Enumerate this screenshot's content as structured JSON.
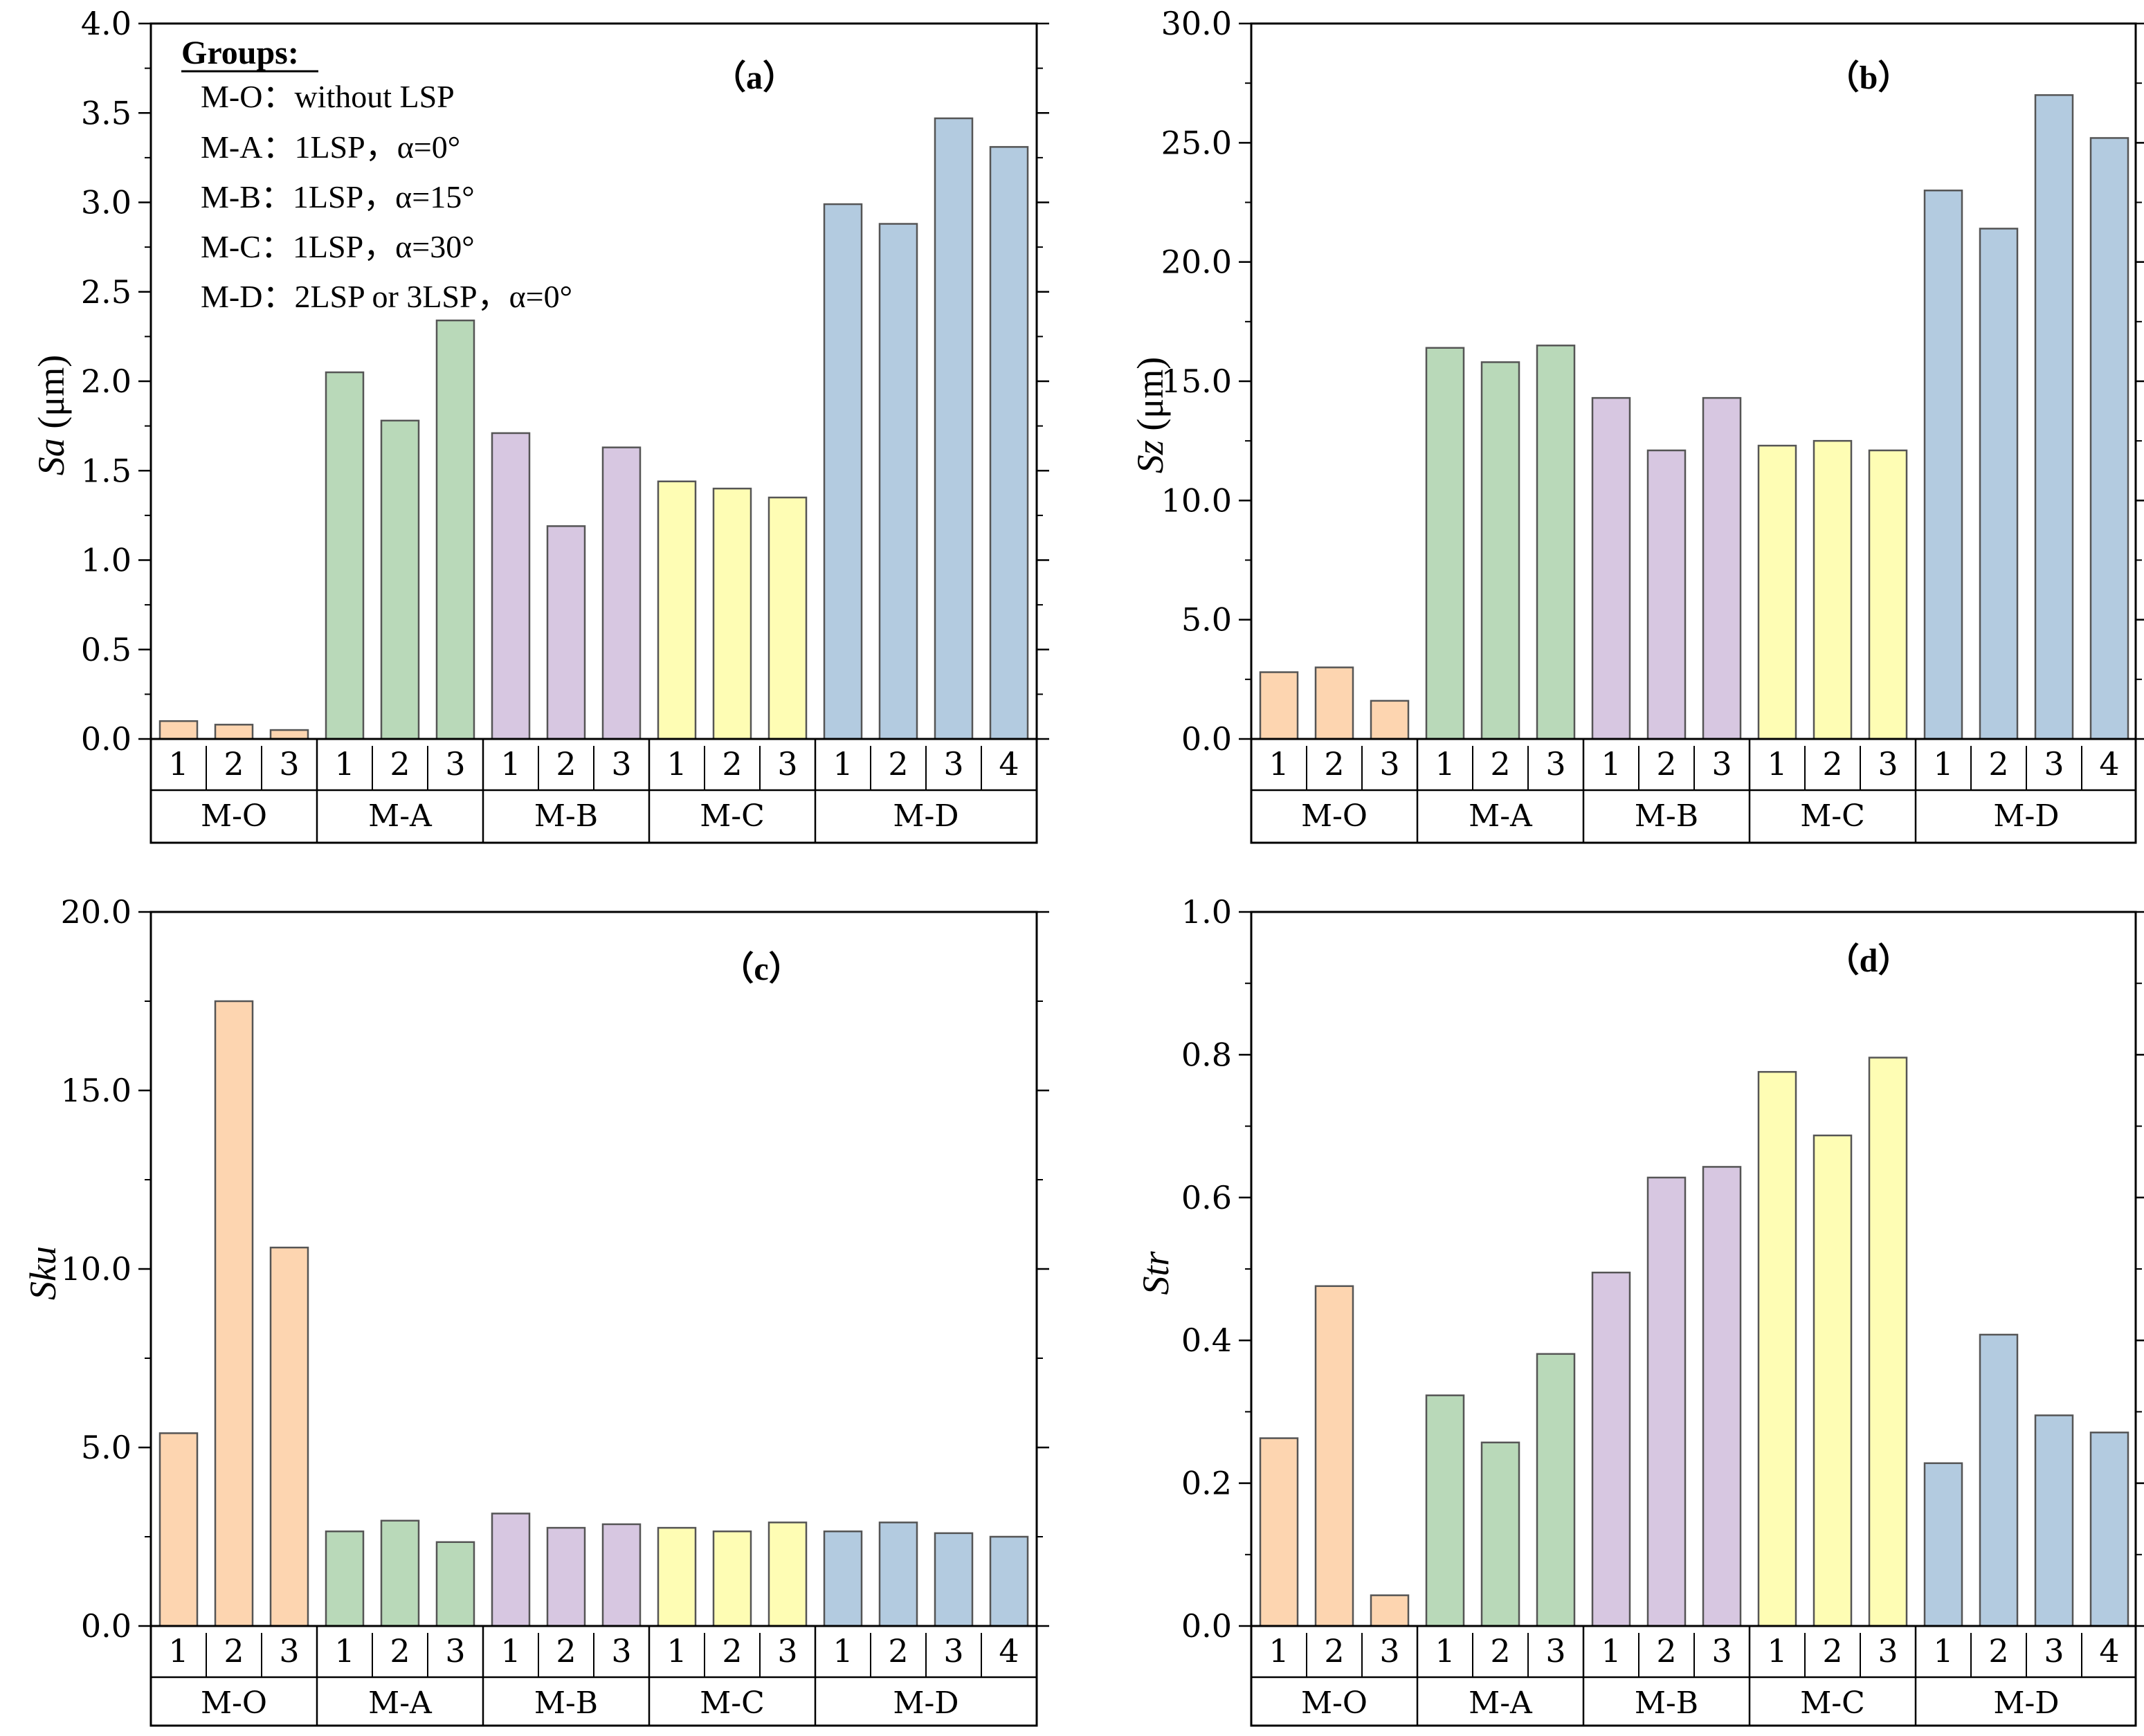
{
  "figure": {
    "legend": {
      "title": "Groups:",
      "items": [
        "M-O：without LSP",
        "M-A：1LSP，α=0°",
        "M-B：1LSP，α=15°",
        "M-C：1LSP，α=30°",
        "M-D：2LSP or 3LSP，α=0°"
      ]
    }
  },
  "colors": {
    "M-O": "#fdd5b0",
    "M-A": "#b9d9b9",
    "M-B": "#d7c7e1",
    "M-C": "#fefdb4",
    "M-D": "#b3cbe0"
  },
  "chart_data": [
    {
      "type": "bar",
      "panel_label": "（a）",
      "ylabel_main": "Sa",
      "ylabel_unit": " (μm)",
      "ylim": [
        0,
        4.0
      ],
      "yticks": [
        "0.0",
        "0.5",
        "1.0",
        "1.5",
        "2.0",
        "2.5",
        "3.0",
        "3.5",
        "4.0"
      ],
      "groups": [
        {
          "name": "M-O",
          "categories": [
            "1",
            "2",
            "3"
          ],
          "values": [
            0.1,
            0.08,
            0.05
          ]
        },
        {
          "name": "M-A",
          "categories": [
            "1",
            "2",
            "3"
          ],
          "values": [
            2.05,
            1.78,
            2.34
          ]
        },
        {
          "name": "M-B",
          "categories": [
            "1",
            "2",
            "3"
          ],
          "values": [
            1.71,
            1.19,
            1.63
          ]
        },
        {
          "name": "M-C",
          "categories": [
            "1",
            "2",
            "3"
          ],
          "values": [
            1.44,
            1.4,
            1.35
          ]
        },
        {
          "name": "M-D",
          "categories": [
            "1",
            "2",
            "3",
            "4"
          ],
          "values": [
            2.99,
            2.88,
            3.47,
            3.31
          ]
        }
      ]
    },
    {
      "type": "bar",
      "panel_label": "（b）",
      "ylabel_main": "Sz",
      "ylabel_unit": " (μm)",
      "ylim": [
        0,
        30.0
      ],
      "yticks": [
        "0.0",
        "5.0",
        "10.0",
        "15.0",
        "20.0",
        "25.0",
        "30.0"
      ],
      "groups": [
        {
          "name": "M-O",
          "categories": [
            "1",
            "2",
            "3"
          ],
          "values": [
            2.8,
            3.0,
            1.6
          ]
        },
        {
          "name": "M-A",
          "categories": [
            "1",
            "2",
            "3"
          ],
          "values": [
            16.4,
            15.8,
            16.5
          ]
        },
        {
          "name": "M-B",
          "categories": [
            "1",
            "2",
            "3"
          ],
          "values": [
            14.3,
            12.1,
            14.3
          ]
        },
        {
          "name": "M-C",
          "categories": [
            "1",
            "2",
            "3"
          ],
          "values": [
            12.3,
            12.5,
            12.1
          ]
        },
        {
          "name": "M-D",
          "categories": [
            "1",
            "2",
            "3",
            "4"
          ],
          "values": [
            23.0,
            21.4,
            27.0,
            25.2
          ]
        }
      ]
    },
    {
      "type": "bar",
      "panel_label": "（c）",
      "ylabel_main": "Sku",
      "ylabel_unit": "",
      "ylim": [
        0,
        20.0
      ],
      "yticks": [
        "0.0",
        "5.0",
        "10.0",
        "15.0",
        "20.0"
      ],
      "groups": [
        {
          "name": "M-O",
          "categories": [
            "1",
            "2",
            "3"
          ],
          "values": [
            5.4,
            17.5,
            10.6
          ]
        },
        {
          "name": "M-A",
          "categories": [
            "1",
            "2",
            "3"
          ],
          "values": [
            2.65,
            2.95,
            2.35
          ]
        },
        {
          "name": "M-B",
          "categories": [
            "1",
            "2",
            "3"
          ],
          "values": [
            3.15,
            2.75,
            2.85
          ]
        },
        {
          "name": "M-C",
          "categories": [
            "1",
            "2",
            "3"
          ],
          "values": [
            2.75,
            2.65,
            2.9
          ]
        },
        {
          "name": "M-D",
          "categories": [
            "1",
            "2",
            "3",
            "4"
          ],
          "values": [
            2.65,
            2.9,
            2.6,
            2.5
          ]
        }
      ]
    },
    {
      "type": "bar",
      "panel_label": "（d）",
      "ylabel_main": "Str",
      "ylabel_unit": "",
      "ylim": [
        0,
        1.0
      ],
      "yticks": [
        "0.0",
        "0.2",
        "0.4",
        "0.6",
        "0.8",
        "1.0"
      ],
      "groups": [
        {
          "name": "M-O",
          "categories": [
            "1",
            "2",
            "3"
          ],
          "values": [
            0.263,
            0.476,
            0.043
          ]
        },
        {
          "name": "M-A",
          "categories": [
            "1",
            "2",
            "3"
          ],
          "values": [
            0.323,
            0.257,
            0.381
          ]
        },
        {
          "name": "M-B",
          "categories": [
            "1",
            "2",
            "3"
          ],
          "values": [
            0.495,
            0.628,
            0.643
          ]
        },
        {
          "name": "M-C",
          "categories": [
            "1",
            "2",
            "3"
          ],
          "values": [
            0.776,
            0.687,
            0.796
          ]
        },
        {
          "name": "M-D",
          "categories": [
            "1",
            "2",
            "3",
            "4"
          ],
          "values": [
            0.228,
            0.408,
            0.295,
            0.271
          ]
        }
      ]
    }
  ]
}
